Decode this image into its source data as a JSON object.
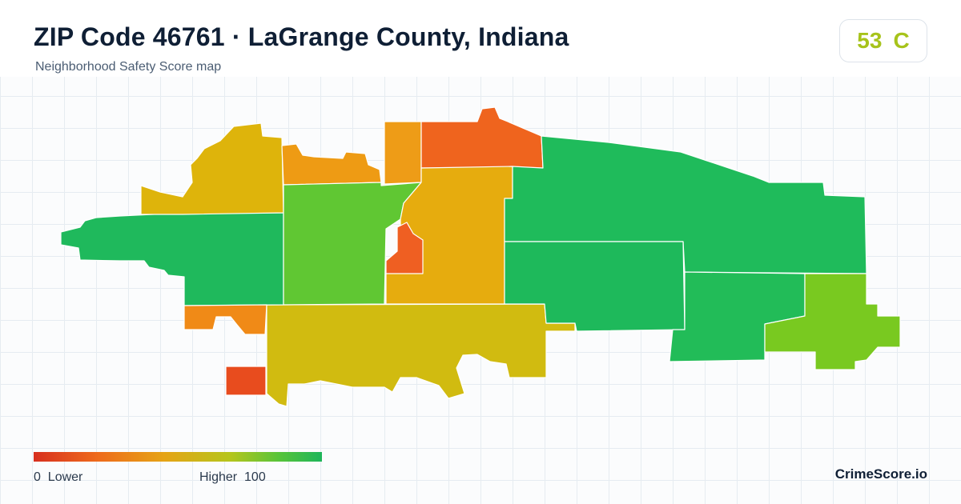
{
  "header": {
    "title": "ZIP Code 46761 · LaGrange County, Indiana",
    "subtitle": "Neighborhood Safety Score map"
  },
  "score": {
    "value": "53",
    "grade": "C",
    "color": "#a7c31b"
  },
  "legend": {
    "low_value": "0",
    "low_label": "Lower",
    "high_label": "Higher",
    "high_value": "100",
    "colors": [
      "#d7301f",
      "#ee6a1c",
      "#e6a316",
      "#b6c51c",
      "#58c43a",
      "#1eb55a"
    ]
  },
  "brand": "CrimeScore.io",
  "map": {
    "regions": [
      {
        "name": "northwest-upper",
        "color": "#deb40b"
      },
      {
        "name": "north-center-left",
        "color": "#ee9b14"
      },
      {
        "name": "north-center-column",
        "color": "#ee9c17"
      },
      {
        "name": "north-top-center",
        "color": "#ef641e"
      },
      {
        "name": "west-long-strip",
        "color": "#1fb95c"
      },
      {
        "name": "central-left",
        "color": "#60c733"
      },
      {
        "name": "central",
        "color": "#e6ac0e"
      },
      {
        "name": "central-small-hotspot",
        "color": "#ef5f22"
      },
      {
        "name": "northeast-large",
        "color": "#1fbb5b"
      },
      {
        "name": "east-middle",
        "color": "#1eb95b"
      },
      {
        "name": "east-right-lower",
        "color": "#22bc58"
      },
      {
        "name": "far-east",
        "color": "#79c920"
      },
      {
        "name": "south-central",
        "color": "#d1bb10"
      },
      {
        "name": "southwest-small",
        "color": "#f08a17"
      },
      {
        "name": "southwest-hotspot",
        "color": "#e84c1e"
      }
    ]
  }
}
